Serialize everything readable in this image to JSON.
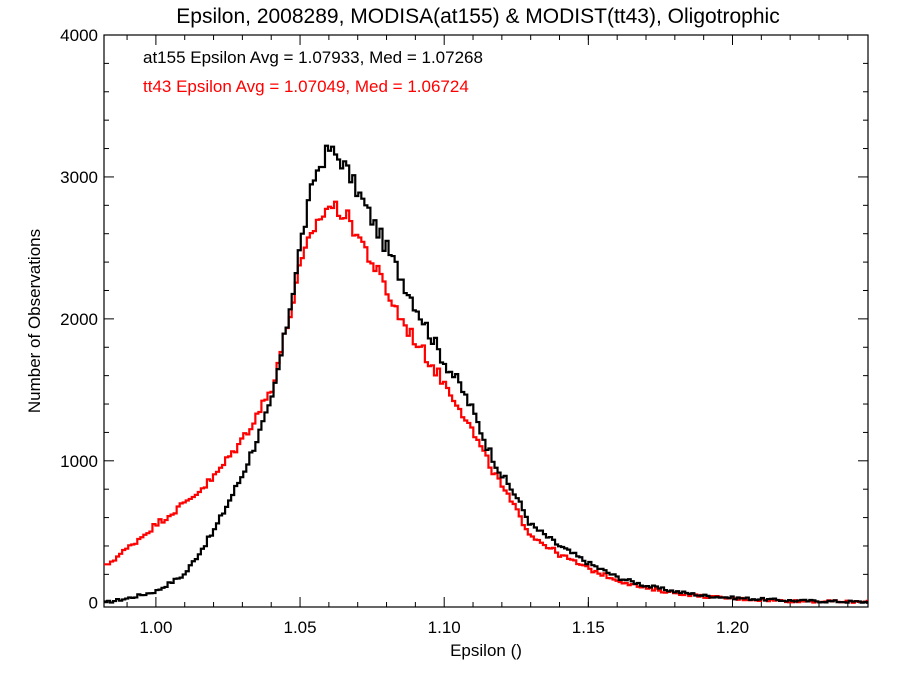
{
  "chart_data": {
    "type": "line",
    "title": "Epsilon, 2008289, MODISA(at155) & MODIST(tt43), Oligotrophic",
    "xlabel": "Epsilon ()",
    "ylabel": "Number of Observations",
    "xlim": [
      0.982,
      1.247
    ],
    "ylim": [
      -30,
      4000
    ],
    "x_ticks": [
      1.0,
      1.05,
      1.1,
      1.15,
      1.2
    ],
    "x_tick_labels": [
      "1.00",
      "1.05",
      "1.10",
      "1.15",
      "1.20"
    ],
    "y_ticks": [
      0,
      1000,
      2000,
      3000,
      4000
    ],
    "y_tick_labels": [
      "0",
      "1000",
      "2000",
      "3000",
      "4000"
    ],
    "step": "histogram",
    "annotations": [
      {
        "text": "at155 Epsilon Avg = 1.07933, Med = 1.07268",
        "color": "#000000"
      },
      {
        "text": "tt43 Epsilon Avg = 1.07049, Med = 1.06724",
        "color": "#ff0000"
      }
    ],
    "series": [
      {
        "color": "#000000",
        "x": [
          0.982,
          0.99,
          1.0,
          1.01,
          1.02,
          1.03,
          1.04,
          1.045,
          1.05,
          1.055,
          1.06,
          1.065,
          1.07,
          1.075,
          1.08,
          1.085,
          1.09,
          1.095,
          1.1,
          1.105,
          1.11,
          1.115,
          1.12,
          1.125,
          1.13,
          1.14,
          1.15,
          1.16,
          1.17,
          1.18,
          1.19,
          1.2,
          1.21,
          1.22,
          1.247
        ],
        "y": [
          0,
          30,
          80,
          200,
          500,
          900,
          1400,
          1900,
          2500,
          3000,
          3200,
          3100,
          2900,
          2700,
          2500,
          2300,
          2100,
          1900,
          1700,
          1550,
          1350,
          1100,
          900,
          750,
          550,
          400,
          280,
          180,
          120,
          80,
          50,
          35,
          25,
          15,
          5
        ]
      },
      {
        "color": "#ff0000",
        "x": [
          0.982,
          0.99,
          1.0,
          1.01,
          1.02,
          1.03,
          1.04,
          1.045,
          1.05,
          1.055,
          1.06,
          1.065,
          1.07,
          1.075,
          1.08,
          1.085,
          1.09,
          1.095,
          1.1,
          1.105,
          1.11,
          1.115,
          1.12,
          1.125,
          1.13,
          1.14,
          1.15,
          1.16,
          1.17,
          1.18,
          1.19,
          1.2,
          1.21,
          1.22,
          1.247
        ],
        "y": [
          250,
          380,
          550,
          700,
          880,
          1150,
          1500,
          1900,
          2350,
          2650,
          2800,
          2750,
          2600,
          2400,
          2200,
          2000,
          1850,
          1700,
          1550,
          1400,
          1200,
          1000,
          820,
          650,
          480,
          340,
          240,
          160,
          100,
          70,
          45,
          30,
          20,
          12,
          5
        ]
      }
    ]
  }
}
